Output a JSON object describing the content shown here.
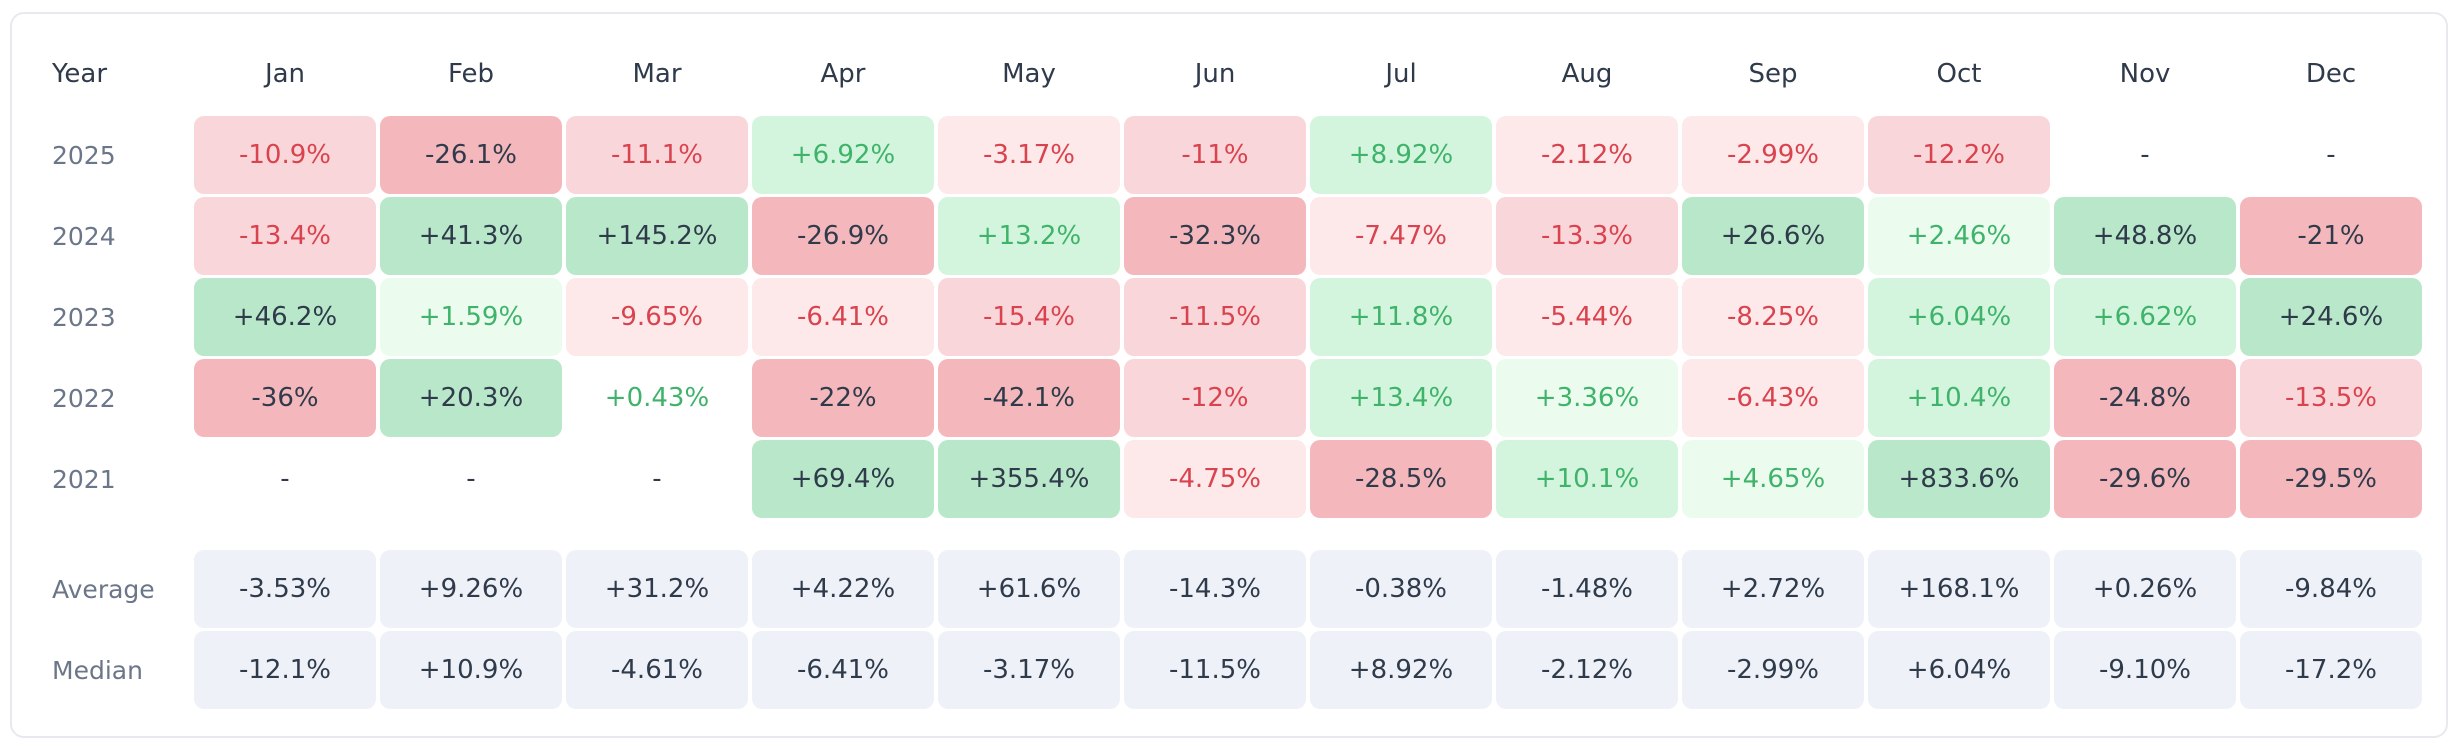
{
  "chart_data": {
    "type": "table",
    "corner_label": "Year",
    "months": [
      "Jan",
      "Feb",
      "Mar",
      "Apr",
      "May",
      "Jun",
      "Jul",
      "Aug",
      "Sep",
      "Oct",
      "Nov",
      "Dec"
    ],
    "years": [
      {
        "year": "2025",
        "values": [
          "-10.9%",
          "-26.1%",
          "-11.1%",
          "+6.92%",
          "-3.17%",
          "-11%",
          "+8.92%",
          "-2.12%",
          "-2.99%",
          "-12.2%",
          "-",
          "-"
        ]
      },
      {
        "year": "2024",
        "values": [
          "-13.4%",
          "+41.3%",
          "+145.2%",
          "-26.9%",
          "+13.2%",
          "-32.3%",
          "-7.47%",
          "-13.3%",
          "+26.6%",
          "+2.46%",
          "+48.8%",
          "-21%"
        ]
      },
      {
        "year": "2023",
        "values": [
          "+46.2%",
          "+1.59%",
          "-9.65%",
          "-6.41%",
          "-15.4%",
          "-11.5%",
          "+11.8%",
          "-5.44%",
          "-8.25%",
          "+6.04%",
          "+6.62%",
          "+24.6%"
        ]
      },
      {
        "year": "2022",
        "values": [
          "-36%",
          "+20.3%",
          "+0.43%",
          "-22%",
          "-42.1%",
          "-12%",
          "+13.4%",
          "+3.36%",
          "-6.43%",
          "+10.4%",
          "-24.8%",
          "-13.5%"
        ]
      },
      {
        "year": "2021",
        "values": [
          "-",
          "-",
          "-",
          "+69.4%",
          "+355.4%",
          "-4.75%",
          "-28.5%",
          "+10.1%",
          "+4.65%",
          "+833.6%",
          "-29.6%",
          "-29.5%"
        ]
      }
    ],
    "summary": [
      {
        "label": "Average",
        "values": [
          "-3.53%",
          "+9.26%",
          "+31.2%",
          "+4.22%",
          "+61.6%",
          "-14.3%",
          "-0.38%",
          "-1.48%",
          "+2.72%",
          "+168.1%",
          "+0.26%",
          "-9.84%"
        ]
      },
      {
        "label": "Median",
        "values": [
          "-12.1%",
          "+10.9%",
          "-4.61%",
          "-6.41%",
          "-3.17%",
          "-11.5%",
          "+8.92%",
          "-2.12%",
          "-2.99%",
          "+6.04%",
          "-9.10%",
          "-17.2%"
        ]
      }
    ],
    "colors": {
      "neg_light_bg": "#fde8ea",
      "neg_mid_bg": "#f9d6da",
      "neg_strong_bg": "#f4b8bc",
      "neg_text": "#d9434e",
      "pos_light_bg": "#ebfcef",
      "pos_mid_bg": "#d3f5de",
      "pos_strong_bg": "#b8e8c9",
      "pos_text": "#3fb36a",
      "strong_text": "#2f3a4a",
      "summary_bg": "#eef2f8",
      "summary_text": "#2f3a4a",
      "empty_text": "#2f3a4a"
    }
  }
}
